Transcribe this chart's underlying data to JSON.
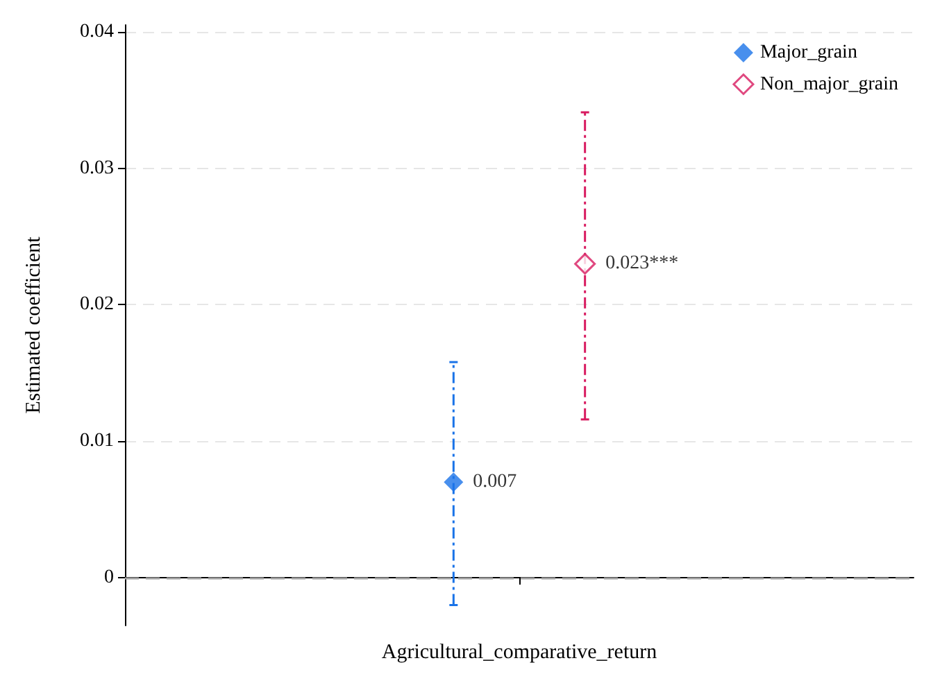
{
  "chart_data": {
    "type": "scatter",
    "ylabel": "Estimated coefficient",
    "categories": [
      "Agricultural_comparative_return"
    ],
    "series": [
      {
        "name": "Major_grain",
        "color": "#1a73e8",
        "values": [
          0.007
        ],
        "errors": [
          [
            -0.002,
            0.0158
          ]
        ],
        "value_labels": [
          "0.007"
        ]
      },
      {
        "name": "Non_major_grain",
        "color": "#d81b60",
        "values": [
          0.023
        ],
        "errors": [
          [
            0.0116,
            0.0341
          ]
        ],
        "value_labels": [
          "0.023***"
        ]
      }
    ],
    "ylim": [
      -0.0035,
      0.0405
    ],
    "yticks": [
      0,
      0.01,
      0.02,
      0.03,
      0.04
    ],
    "grid": "y",
    "legend": "top right",
    "marker": "diamond",
    "line_style": "dashed",
    "ref_lines": [
      {
        "axis": "y",
        "value": 0,
        "color": "#a0a0a0",
        "line_style": "dashed"
      }
    ]
  }
}
